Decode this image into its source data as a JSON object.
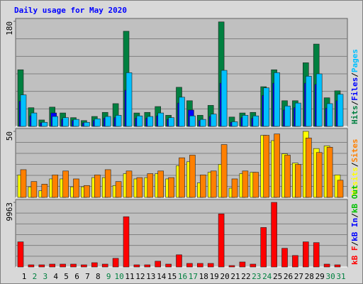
{
  "title": "Daily usage for May 2020",
  "legend_separator": "/",
  "weekend_color": "#008040",
  "weekend_indices": [
    1,
    2,
    8,
    9,
    15,
    16,
    22,
    23,
    29,
    30
  ],
  "chart_data": [
    {
      "type": "bar",
      "ylim": [
        0,
        180
      ],
      "yticks": [
        180
      ],
      "series": [
        {
          "name": "Hits",
          "color": "#008040",
          "values": [
            97,
            32,
            11,
            33,
            23,
            15,
            10,
            17,
            24,
            39,
            163,
            23,
            24,
            34,
            19,
            67,
            44,
            19,
            36,
            179,
            16,
            23,
            24,
            68,
            97,
            44,
            44,
            109,
            141,
            49,
            61
          ]
        },
        {
          "name": "Files",
          "color": "#0000ff",
          "values": [
            43,
            18,
            6,
            23,
            12,
            10,
            6,
            10,
            14,
            15,
            62,
            14,
            14,
            18,
            12,
            40,
            28,
            10,
            17,
            74,
            7,
            15,
            14,
            53,
            74,
            28,
            32,
            74,
            72,
            31,
            44
          ]
        },
        {
          "name": "Pages",
          "color": "#00c0ff",
          "values": [
            54,
            23,
            7,
            17,
            15,
            12,
            7,
            13,
            17,
            19,
            92,
            18,
            17,
            23,
            15,
            50,
            18,
            12,
            21,
            96,
            8,
            19,
            18,
            66,
            92,
            35,
            40,
            86,
            90,
            39,
            55
          ]
        }
      ]
    },
    {
      "type": "bar",
      "ylim": [
        0,
        50
      ],
      "yticks": [
        50
      ],
      "series": [
        {
          "name": "Visits",
          "color": "#ffff00",
          "values": [
            17,
            8,
            5,
            14,
            14,
            8,
            8,
            15,
            15,
            9,
            18,
            14,
            15,
            18,
            14,
            24,
            27,
            11,
            19,
            25,
            7,
            18,
            19,
            47,
            43,
            33,
            26,
            50,
            37,
            39,
            17
          ]
        },
        {
          "name": "Sites",
          "color": "#ff8000",
          "values": [
            21,
            12,
            10,
            17,
            20,
            14,
            9,
            17,
            21,
            12,
            20,
            15,
            18,
            20,
            15,
            30,
            32,
            17,
            20,
            40,
            14,
            20,
            19,
            47,
            48,
            32,
            25,
            45,
            34,
            38,
            13
          ]
        }
      ]
    },
    {
      "type": "bar",
      "ylim": [
        0,
        9963
      ],
      "yticks": [
        9963
      ],
      "categories": [
        "1",
        "2",
        "3",
        "4",
        "5",
        "6",
        "7",
        "8",
        "9",
        "10",
        "11",
        "12",
        "13",
        "14",
        "15",
        "16",
        "17",
        "18",
        "19",
        "20",
        "21",
        "22",
        "23",
        "24",
        "25",
        "26",
        "27",
        "28",
        "29",
        "30",
        "31"
      ],
      "series": [
        {
          "name": "kB F",
          "color": "#ff0000",
          "values": [
            3875,
            330,
            330,
            440,
            440,
            440,
            330,
            660,
            440,
            1330,
            7750,
            330,
            330,
            890,
            440,
            1880,
            550,
            550,
            550,
            8190,
            220,
            770,
            440,
            6090,
            9963,
            2880,
            1770,
            3875,
            3760,
            440,
            330
          ]
        },
        {
          "name": "kB In",
          "color": "#0000ff"
        },
        {
          "name": "kB Out",
          "color": "#00c000"
        }
      ]
    }
  ]
}
